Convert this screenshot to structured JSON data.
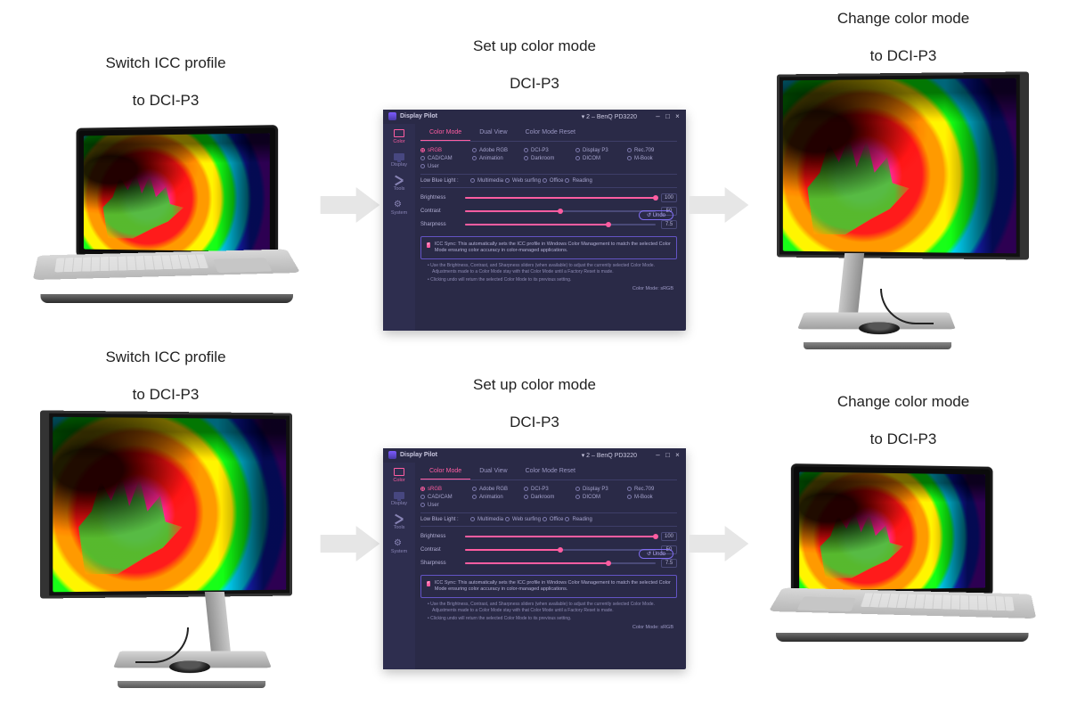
{
  "steps": {
    "s1": {
      "line1": "Switch ICC profile",
      "line2": "to DCI-P3"
    },
    "s2": {
      "line1": "Set up color mode",
      "line2": "DCI-P3"
    },
    "s3": {
      "line1": "Change color mode",
      "line2": "to DCI-P3"
    }
  },
  "arrow_color": "#e6e6e6",
  "app": {
    "title": "Display Pilot",
    "device": "2 – BenQ PD3220",
    "window_buttons": [
      "–",
      "□",
      "×"
    ],
    "sidebar": [
      {
        "label": "Color",
        "active": true
      },
      {
        "label": "Display",
        "active": false
      },
      {
        "label": "Tools",
        "active": false
      },
      {
        "label": "System",
        "active": false
      }
    ],
    "tabs": [
      {
        "label": "Color Mode",
        "active": true
      },
      {
        "label": "Dual View",
        "active": false
      },
      {
        "label": "Color Mode Reset",
        "active": false
      }
    ],
    "modes": [
      {
        "label": "sRGB",
        "selected": true
      },
      {
        "label": "Adobe RGB",
        "selected": false
      },
      {
        "label": "DCI-P3",
        "selected": false
      },
      {
        "label": "Display P3",
        "selected": false
      },
      {
        "label": "Rec.709",
        "selected": false
      },
      {
        "label": "CAD/CAM",
        "selected": false
      },
      {
        "label": "Animation",
        "selected": false
      },
      {
        "label": "Darkroom",
        "selected": false
      },
      {
        "label": "DICOM",
        "selected": false
      },
      {
        "label": "M-Book",
        "selected": false
      },
      {
        "label": "User",
        "selected": false
      }
    ],
    "low_blue": {
      "label": "Low Blue Light :",
      "opts": [
        {
          "label": "Multimedia",
          "selected": false
        },
        {
          "label": "Web surfing",
          "selected": false
        },
        {
          "label": "Office",
          "selected": false
        },
        {
          "label": "Reading",
          "selected": false
        }
      ]
    },
    "sliders": {
      "brightness": {
        "label": "Brightness",
        "value": 100,
        "max": 100
      },
      "contrast": {
        "label": "Contrast",
        "value": 50,
        "max": 100
      },
      "sharpness": {
        "label": "Sharpness",
        "value": 7.5,
        "max": 10,
        "display": "7.5"
      }
    },
    "undo": "↺  Undo",
    "icc_text": "ICC Sync: This automatically sets the ICC profile in Windows Color Management to match the selected Color Mode ensuring color accuracy in color-managed applications.",
    "notes": [
      "• Use the Brightness, Contrast, and Sharpness sliders (when available) to adjust the currently selected Color Mode. Adjustments made to a Color Mode stay with that Color Mode until a Factory Reset is made.",
      "• Clicking undo will return the selected Color Mode to its previous setting."
    ],
    "footer": "Color Mode: sRGB",
    "colors": {
      "bg": "#2a2a47",
      "sidebar_bg": "#2e2e4f",
      "accent": "#ff5da1",
      "accent2": "#7f6cf0",
      "text": "#b3b0d5",
      "border": "#3e3e68"
    }
  }
}
